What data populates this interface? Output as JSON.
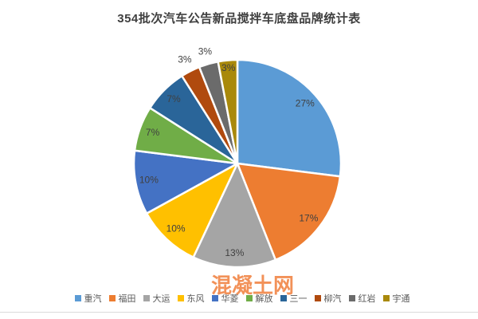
{
  "watermark": "混凝土网",
  "chart_data": {
    "type": "pie",
    "title": "354批次汽车公告新品搅拌车底盘品牌统计表",
    "unit": "%",
    "start_angle_deg": 0,
    "direction": "clockwise",
    "legend_position": "bottom",
    "background": "#ffffff",
    "slice_border_color": "#ffffff",
    "label_color": "#404040",
    "series": [
      {
        "name": "重汽",
        "value": 27,
        "label": "27%",
        "color": "#5B9BD5",
        "label_placement": "inside"
      },
      {
        "name": "福田",
        "value": 17,
        "label": "17%",
        "color": "#ED7D31",
        "label_placement": "inside"
      },
      {
        "name": "大运",
        "value": 13,
        "label": "13%",
        "color": "#A5A5A5",
        "label_placement": "inside"
      },
      {
        "name": "东风",
        "value": 10,
        "label": "10%",
        "color": "#FFC000",
        "label_placement": "inside"
      },
      {
        "name": "华菱",
        "value": 10,
        "label": "10%",
        "color": "#4472C4",
        "label_placement": "inside"
      },
      {
        "name": "解放",
        "value": 7,
        "label": "7%",
        "color": "#70AD47",
        "label_placement": "inside"
      },
      {
        "name": "三一",
        "value": 7,
        "label": "7%",
        "color": "#2A6599",
        "label_placement": "inside"
      },
      {
        "name": "柳汽",
        "value": 3,
        "label": "3%",
        "color": "#B04A0E",
        "label_placement": "outside"
      },
      {
        "name": "红岩",
        "value": 3,
        "label": "3%",
        "color": "#6B6B6B",
        "label_placement": "outside"
      },
      {
        "name": "宇通",
        "value": 3,
        "label": "3%",
        "color": "#A9890B",
        "label_placement": "inside_edge"
      }
    ]
  }
}
